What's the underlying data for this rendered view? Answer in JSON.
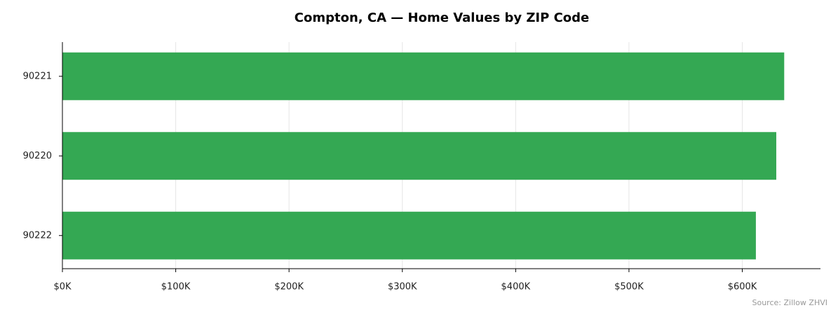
{
  "chart_data": {
    "type": "bar",
    "orientation": "horizontal",
    "title": "Compton, CA — Home Values by ZIP Code",
    "categories": [
      "90221",
      "90220",
      "90222"
    ],
    "values": [
      637000,
      630000,
      612000
    ],
    "color": "#34a853",
    "xlim": [
      0,
      669000
    ],
    "xticks": [
      {
        "value": 0,
        "label": "$0K"
      },
      {
        "value": 100000,
        "label": "$100K"
      },
      {
        "value": 200000,
        "label": "$200K"
      },
      {
        "value": 300000,
        "label": "$300K"
      },
      {
        "value": 400000,
        "label": "$400K"
      },
      {
        "value": 500000,
        "label": "$500K"
      },
      {
        "value": 600000,
        "label": "$600K"
      }
    ],
    "grid": true,
    "annotation": "Source: Zillow ZHVI"
  }
}
